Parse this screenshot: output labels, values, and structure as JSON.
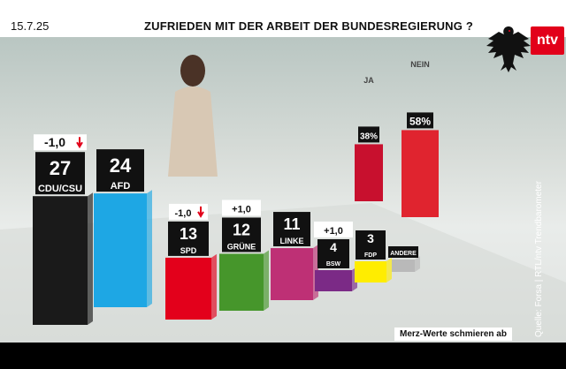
{
  "header": {
    "date": "15.7.25",
    "headline": "ZUFRIEDEN MIT DER ARBEIT DER BUNDESREGIERUNG ?"
  },
  "footer": {
    "subtitle": "Merz-Werte schmieren ab",
    "source": "Quelle: Forsa | RTL/ntv Trendbarometer"
  },
  "brand": {
    "logo": "ntv",
    "emblem": "federal-eagle-icon"
  },
  "chart_data": [
    {
      "type": "bar",
      "categories": [
        "CDU/CSU",
        "AFD",
        "SPD",
        "GRÜNE",
        "LINKE",
        "BSW",
        "FDP",
        "ANDERE"
      ],
      "values": [
        27,
        24,
        13,
        12,
        11,
        4,
        3,
        null
      ],
      "value_labels": [
        "27",
        "24",
        "13",
        "12",
        "11",
        "4",
        "3",
        ""
      ],
      "changes": [
        "-1,0",
        "",
        "-1,0",
        "+1,0",
        "",
        "+1,0",
        "",
        ""
      ],
      "change_direction": [
        "down",
        "",
        "down",
        "",
        "",
        "",
        "",
        ""
      ],
      "colors": [
        "#1a1a1a",
        "#1ea7e4",
        "#e3001b",
        "#46962b",
        "#be3075",
        "#7b2a86",
        "#ffed00",
        "#b9b9b9"
      ]
    },
    {
      "type": "bar",
      "categories": [
        "JA",
        "NEIN"
      ],
      "values": [
        38,
        58
      ],
      "value_labels": [
        "38%",
        "58%"
      ],
      "colors": [
        "#c8102e",
        "#e0242f"
      ]
    }
  ]
}
